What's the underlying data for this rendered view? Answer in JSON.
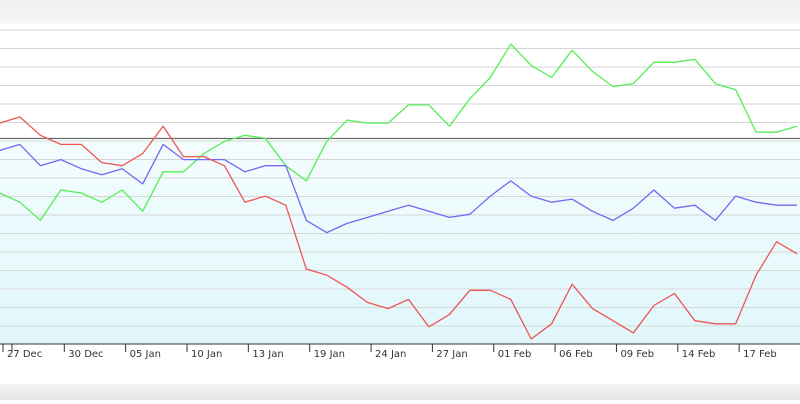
{
  "chart_data": {
    "type": "line",
    "title": "",
    "xlabel": "",
    "ylabel": "",
    "grid": true,
    "legend": "none",
    "x_ticks": [
      "27 Dec",
      "30 Dec",
      "05 Jan",
      "10 Jan",
      "13 Jan",
      "19 Jan",
      "24 Jan",
      "27 Jan",
      "01 Feb",
      "06 Feb",
      "09 Feb",
      "14 Feb",
      "17 Feb"
    ],
    "x_tick_index": [
      1,
      4,
      7,
      10,
      13,
      16,
      19,
      22,
      25,
      28,
      31,
      34,
      37
    ],
    "ylim": [
      0,
      100
    ],
    "reference_line": 67,
    "series": [
      {
        "color": "#55ee55",
        "values": [
          49,
          46,
          40,
          50,
          49,
          46,
          50,
          43,
          56,
          56,
          62,
          66,
          68,
          67,
          58,
          53,
          66,
          73,
          72,
          72,
          78,
          78,
          71,
          80,
          87,
          98,
          91,
          87,
          96,
          89,
          84,
          85,
          92,
          92,
          93,
          85,
          83,
          69,
          69,
          71
        ]
      },
      {
        "color": "#7766ee",
        "values": [
          63,
          65,
          58,
          60,
          57,
          55,
          57,
          52,
          65,
          60,
          60,
          60,
          56,
          58,
          58,
          40,
          36,
          39,
          41,
          43,
          45,
          43,
          41,
          42,
          48,
          53,
          48,
          46,
          47,
          43,
          40,
          44,
          50,
          44,
          45,
          40,
          48,
          46,
          45,
          45
        ]
      },
      {
        "color": "#ee5555",
        "values": [
          72,
          74,
          68,
          65,
          65,
          59,
          58,
          62,
          71,
          61,
          61,
          58,
          46,
          48,
          45,
          24,
          22,
          18,
          13,
          11,
          14,
          5,
          9,
          17,
          17,
          14,
          1,
          6,
          19,
          11,
          7,
          3,
          12,
          16,
          7,
          6,
          6,
          22,
          33,
          29
        ]
      }
    ]
  }
}
